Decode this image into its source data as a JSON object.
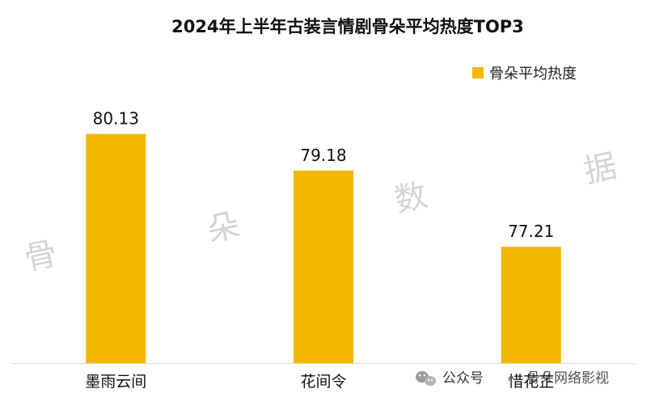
{
  "watermark": {
    "chars": [
      "骨",
      "朵",
      "数",
      "据"
    ]
  },
  "footer": {
    "wechat_label": "公众号",
    "brand": "骨朵网络影视",
    "icon": "wechat-icon"
  },
  "chart_data": {
    "type": "bar",
    "title": "2024年上半年古装言情剧骨朵平均热度TOP3",
    "categories": [
      "墨雨云间",
      "花间令",
      "惜花芷"
    ],
    "series": [
      {
        "name": "骨朵平均热度",
        "values": [
          80.13,
          79.18,
          77.21
        ],
        "labels": [
          "80.13",
          "79.18",
          "77.21"
        ],
        "color": "#F2B800"
      }
    ],
    "legend_position": "top-right",
    "grid": false,
    "ylim": [
      74.2,
      81.5
    ]
  }
}
